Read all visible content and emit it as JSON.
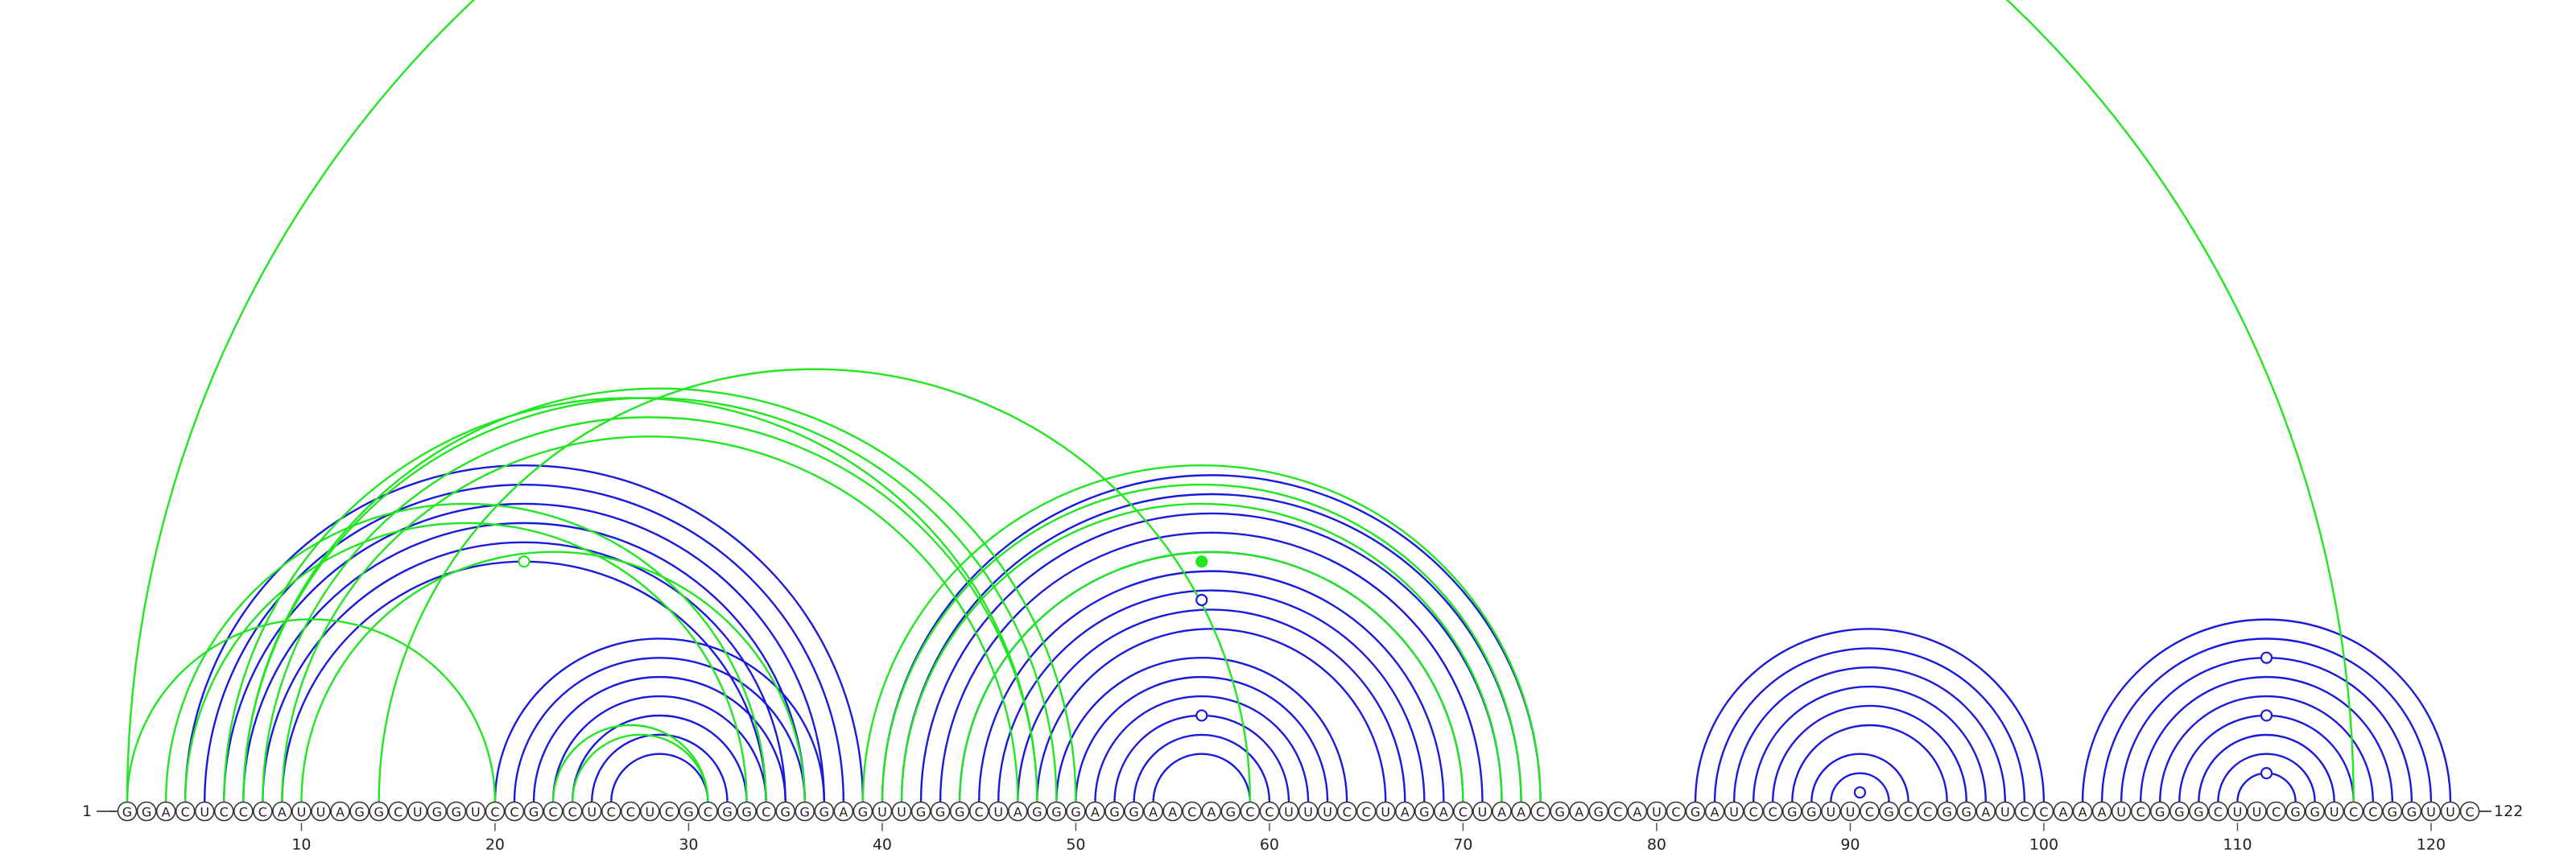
{
  "diagram": {
    "sequence": "GGACUCCCAUUAGGCUGGUCCGCCUCCUCGCGGCGGGAGUUGGGCUAGGGAGGAACAGCCUUUCCUAGACUAACGAGCAUCGAUCCGGUUCGCCGGAUCCAAAUCGGGCUUCGGUCCGGUUC",
    "start_label": "1",
    "end_label": "122",
    "tick_positions": [
      10,
      20,
      30,
      40,
      50,
      60,
      70,
      80,
      90,
      100,
      110,
      120
    ],
    "colors": {
      "blue": "#1a1adc",
      "green": "#22e622",
      "backbone": "#444444"
    },
    "blue_pairs": [
      [
        4,
        39
      ],
      [
        5,
        38
      ],
      [
        6,
        37
      ],
      [
        7,
        36
      ],
      [
        8,
        35
      ],
      [
        9,
        34
      ],
      [
        20,
        37
      ],
      [
        21,
        36
      ],
      [
        22,
        35
      ],
      [
        23,
        34
      ],
      [
        24,
        33
      ],
      [
        25,
        32
      ],
      [
        26,
        31
      ],
      [
        40,
        74
      ],
      [
        41,
        73
      ],
      [
        42,
        72
      ],
      [
        43,
        71
      ],
      [
        44,
        70
      ],
      [
        45,
        69
      ],
      [
        46,
        68
      ],
      [
        47,
        67
      ],
      [
        48,
        66
      ],
      [
        49,
        64
      ],
      [
        50,
        63
      ],
      [
        51,
        62
      ],
      [
        52,
        61
      ],
      [
        53,
        60
      ],
      [
        54,
        59
      ],
      [
        82,
        100
      ],
      [
        83,
        99
      ],
      [
        84,
        98
      ],
      [
        85,
        97
      ],
      [
        86,
        96
      ],
      [
        87,
        95
      ],
      [
        88,
        93
      ],
      [
        89,
        92
      ],
      [
        102,
        121
      ],
      [
        103,
        120
      ],
      [
        104,
        119
      ],
      [
        105,
        118
      ],
      [
        106,
        117
      ],
      [
        107,
        116
      ],
      [
        108,
        115
      ],
      [
        109,
        114
      ],
      [
        110,
        113
      ]
    ],
    "green_pairs": [
      [
        1,
        116
      ],
      [
        1,
        20
      ],
      [
        3,
        34
      ],
      [
        4,
        33
      ],
      [
        6,
        48
      ],
      [
        7,
        49
      ],
      [
        7,
        50
      ],
      [
        8,
        48
      ],
      [
        9,
        47
      ],
      [
        10,
        36
      ],
      [
        14,
        59
      ],
      [
        23,
        31
      ],
      [
        24,
        31
      ],
      [
        39,
        74
      ],
      [
        40,
        73
      ],
      [
        41,
        72
      ],
      [
        44,
        70
      ]
    ],
    "blue_markers": [
      {
        "pair": [
          46,
          67
        ],
        "filled": false
      },
      {
        "pair": [
          52,
          61
        ],
        "filled": false
      },
      {
        "pair": [
          90,
          91
        ],
        "filled": false
      },
      {
        "pair": [
          104,
          119
        ],
        "filled": false
      },
      {
        "pair": [
          107,
          116
        ],
        "filled": false
      },
      {
        "pair": [
          110,
          113
        ],
        "filled": false
      }
    ],
    "green_markers": [
      {
        "pair": [
          9,
          34
        ],
        "filled": false
      },
      {
        "pair": [
          44,
          69
        ],
        "filled": true
      }
    ]
  }
}
